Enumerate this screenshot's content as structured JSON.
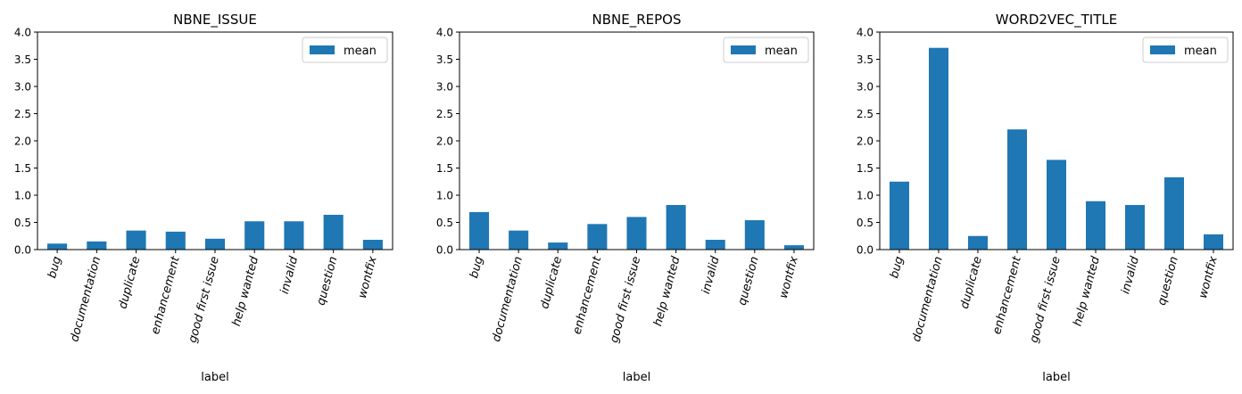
{
  "chart_data": [
    {
      "type": "bar",
      "title": "NBNE_ISSUE",
      "xlabel": "label",
      "ylabel": "",
      "ylim": [
        0,
        4.0
      ],
      "yticks": [
        "0.0",
        "0.5",
        "1.0",
        "1.5",
        "2.0",
        "2.5",
        "3.0",
        "3.5",
        "4.0"
      ],
      "categories": [
        "bug",
        "documentation",
        "duplicate",
        "enhancement",
        "good first issue",
        "help wanted",
        "invalid",
        "question",
        "wontfix"
      ],
      "series": [
        {
          "name": "mean",
          "color": "#1f77b4",
          "values": [
            0.11,
            0.15,
            0.35,
            0.33,
            0.2,
            0.52,
            0.52,
            0.64,
            0.18
          ]
        }
      ],
      "legend": "top-right"
    },
    {
      "type": "bar",
      "title": "NBNE_REPOS",
      "xlabel": "label",
      "ylabel": "",
      "ylim": [
        0,
        4.0
      ],
      "yticks": [
        "0.0",
        "0.5",
        "1.0",
        "1.5",
        "2.0",
        "2.5",
        "3.0",
        "3.5",
        "4.0"
      ],
      "categories": [
        "bug",
        "documentation",
        "duplicate",
        "enhancement",
        "good first issue",
        "help wanted",
        "invalid",
        "question",
        "wontfix"
      ],
      "series": [
        {
          "name": "mean",
          "color": "#1f77b4",
          "values": [
            0.69,
            0.35,
            0.13,
            0.47,
            0.6,
            0.82,
            0.18,
            0.54,
            0.08
          ]
        }
      ],
      "legend": "top-right"
    },
    {
      "type": "bar",
      "title": "WORD2VEC_TITLE",
      "xlabel": "label",
      "ylabel": "",
      "ylim": [
        0,
        4.0
      ],
      "yticks": [
        "0.0",
        "0.5",
        "1.0",
        "1.5",
        "2.0",
        "2.5",
        "3.0",
        "3.5",
        "4.0"
      ],
      "categories": [
        "bug",
        "documentation",
        "duplicate",
        "enhancement",
        "good first issue",
        "help wanted",
        "invalid",
        "question",
        "wontfix"
      ],
      "series": [
        {
          "name": "mean",
          "color": "#1f77b4",
          "values": [
            1.25,
            3.71,
            0.25,
            2.21,
            1.65,
            0.89,
            0.82,
            1.33,
            0.28
          ]
        }
      ],
      "legend": "top-right"
    }
  ]
}
